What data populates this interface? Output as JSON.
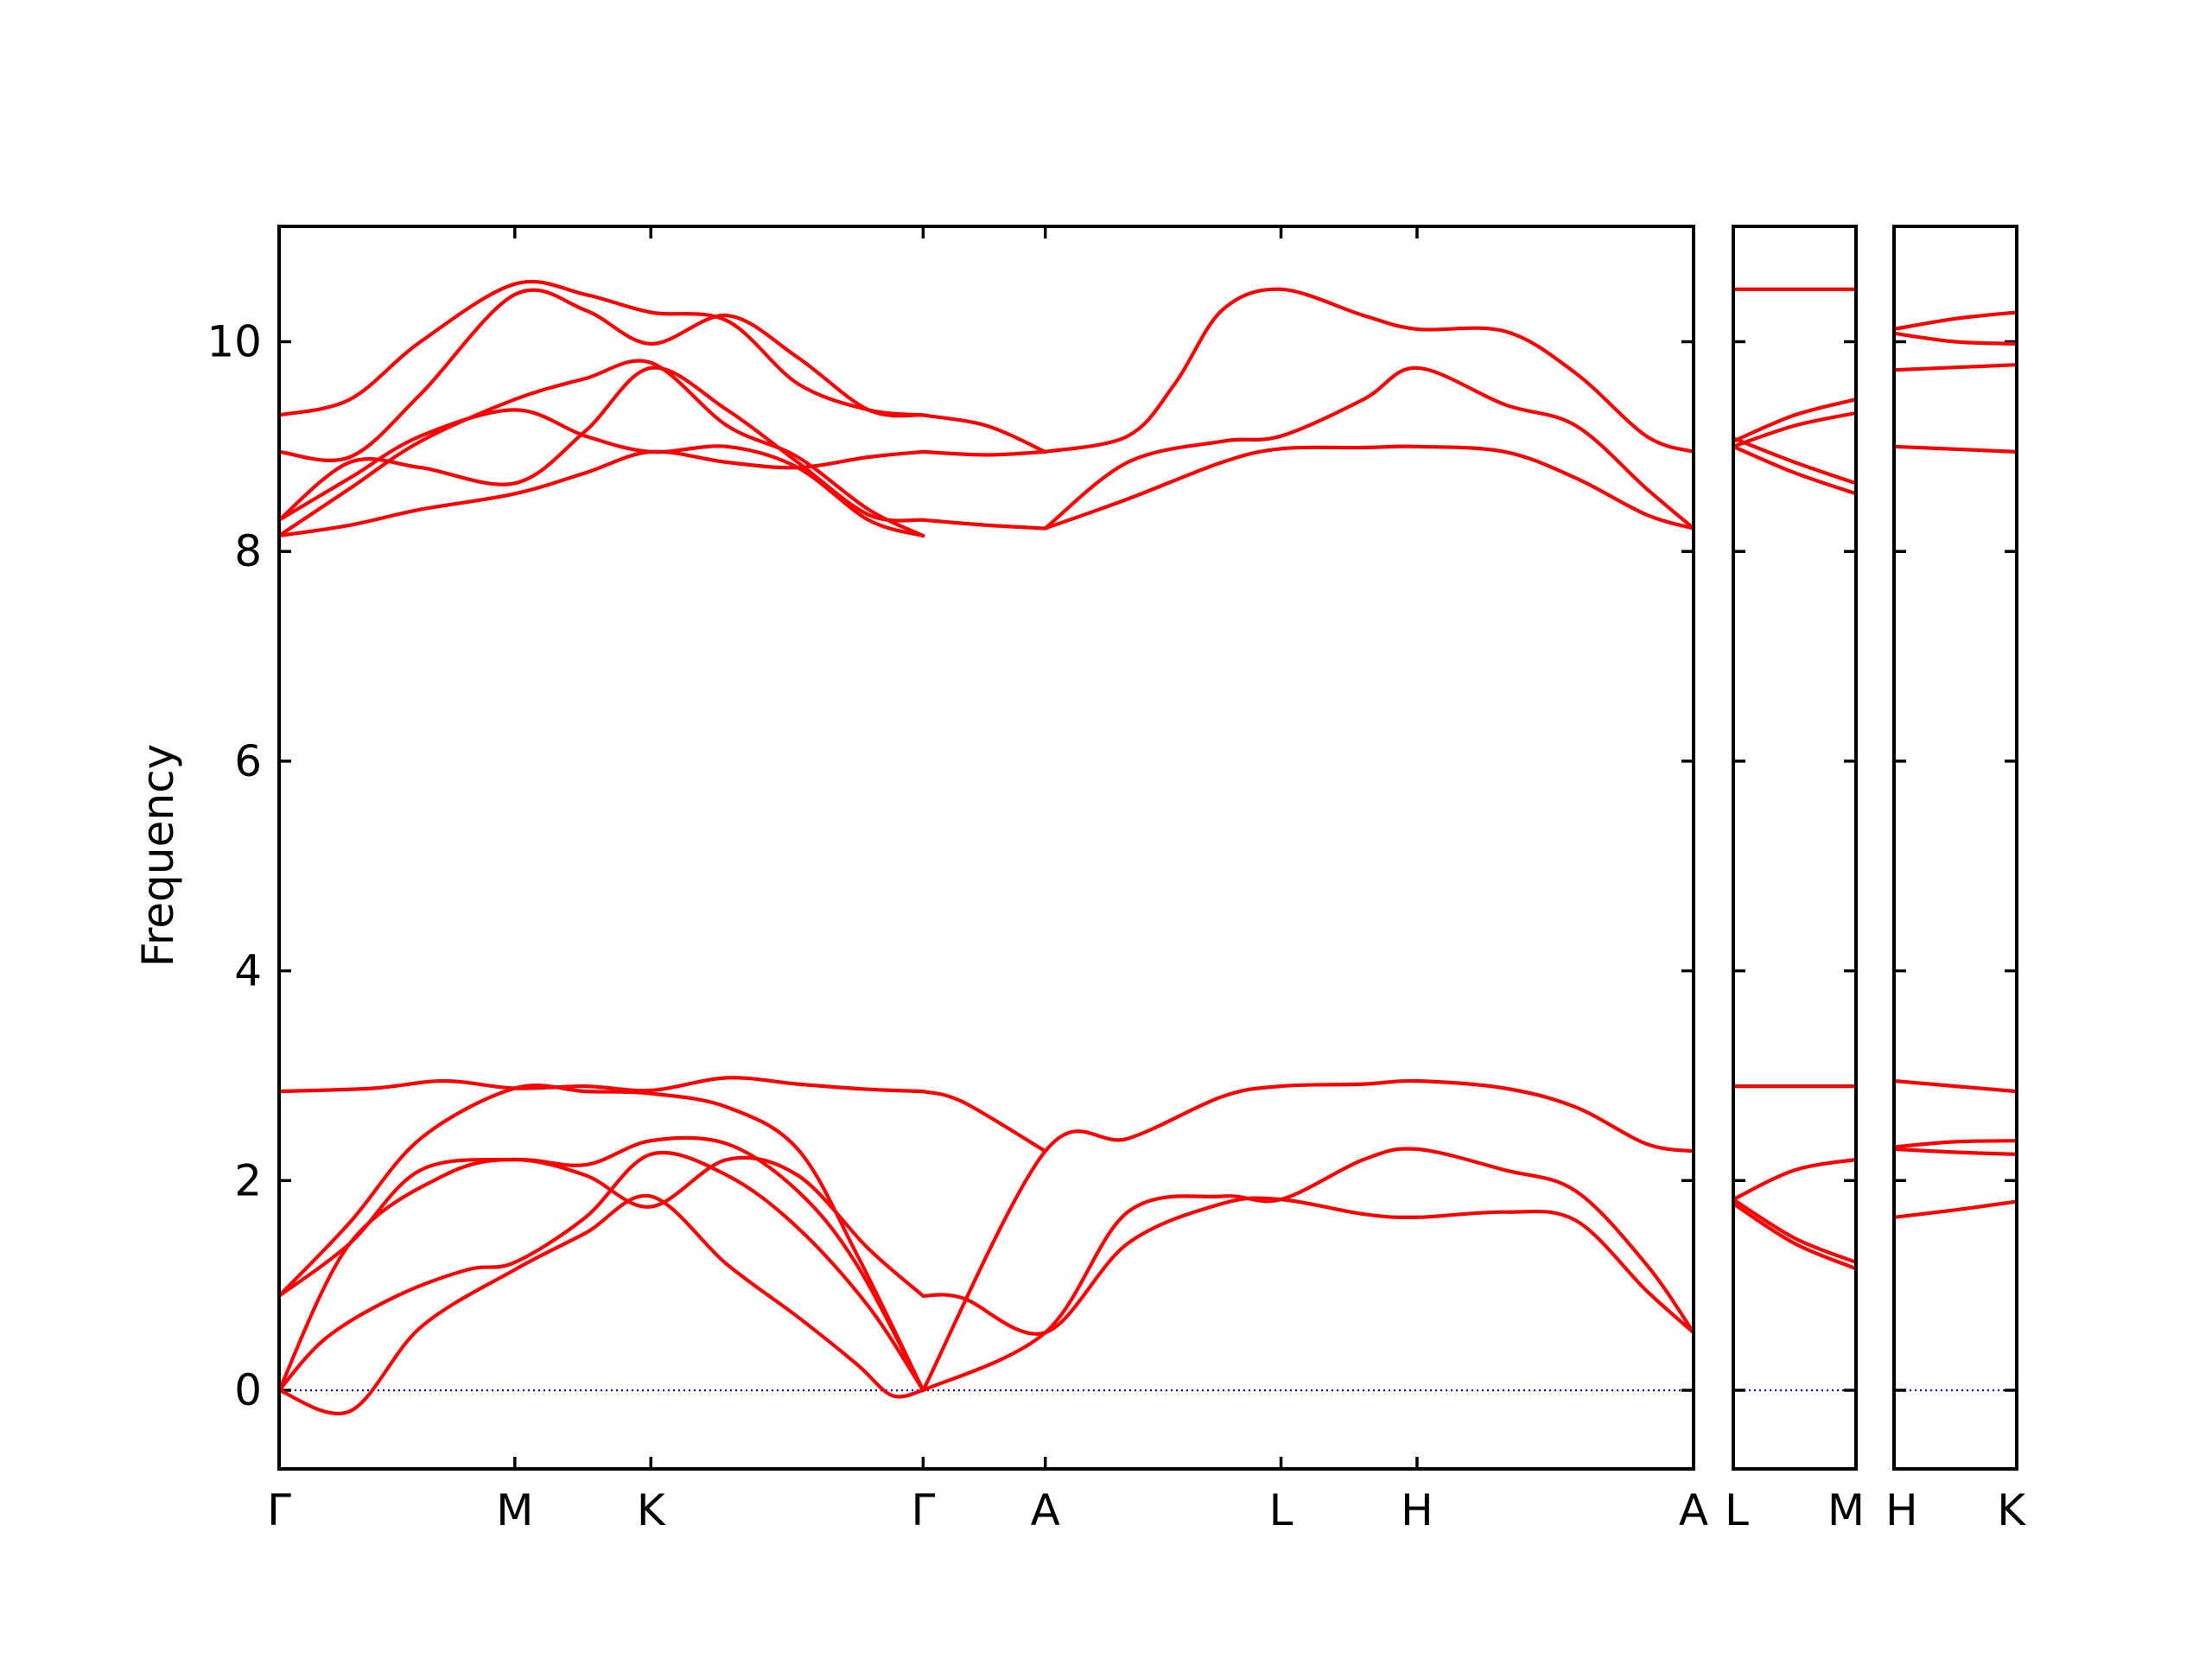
{
  "chart_data": {
    "type": "line",
    "title": "",
    "ylabel": "Frequency",
    "ylim": [
      -0.75,
      11.1
    ],
    "yticks": [
      0,
      2,
      4,
      6,
      8,
      10
    ],
    "ytick_labels": [
      "0",
      "2",
      "4",
      "6",
      "8",
      "10"
    ],
    "colors": {
      "band": "#ff0000",
      "zero_line": "#0000cc",
      "axes": "#000000"
    },
    "grid": false,
    "legend": "none",
    "panels": [
      {
        "name": "main",
        "x_labels": [
          "Γ",
          "M",
          "K",
          "Γ",
          "A",
          "L",
          "H",
          "A"
        ],
        "x_positions": [
          0,
          1,
          1.577,
          2.732,
          3.25,
          4.25,
          4.827,
          6.0
        ],
        "series": [
          {
            "x": [
              0,
              0.3,
              0.6,
              1.0,
              1.3,
              1.577,
              1.9,
              2.2,
              2.45,
              2.6,
              2.732
            ],
            "y": [
              0.0,
              -0.2,
              0.6,
              1.15,
              1.5,
              1.85,
              1.2,
              0.7,
              0.25,
              -0.05,
              0.0
            ]
          },
          {
            "x": [
              0,
              0.2,
              0.5,
              0.8,
              1.0,
              1.3,
              1.577,
              1.9,
              2.2,
              2.5,
              2.732
            ],
            "y": [
              0.0,
              0.5,
              0.9,
              1.15,
              1.22,
              1.65,
              2.25,
              2.05,
              1.55,
              0.8,
              0.0
            ]
          },
          {
            "x": [
              0,
              0.3,
              0.7,
              1.0,
              1.3,
              1.577,
              1.9,
              2.2,
              2.5,
              2.732
            ],
            "y": [
              0.0,
              1.4,
              2.05,
              2.2,
              2.05,
              1.75,
              2.2,
              2.05,
              1.35,
              0.9
            ]
          },
          {
            "x": [
              0,
              0.3,
              0.6,
              1.0,
              1.3,
              1.577,
              1.9,
              2.2,
              2.45,
              2.732
            ],
            "y": [
              0.9,
              1.4,
              2.1,
              2.2,
              2.15,
              2.38,
              2.35,
              1.9,
              1.2,
              0.0
            ]
          },
          {
            "x": [
              0,
              0.3,
              0.6,
              1.0,
              1.3,
              1.577,
              1.9,
              2.2,
              2.45,
              2.732
            ],
            "y": [
              0.9,
              1.6,
              2.4,
              2.88,
              2.85,
              2.83,
              2.7,
              2.3,
              1.3,
              0.0
            ]
          },
          {
            "x": [
              0,
              0.4,
              0.7,
              1.0,
              1.3,
              1.577,
              1.9,
              2.2,
              2.5,
              2.732
            ],
            "y": [
              2.85,
              2.88,
              2.95,
              2.88,
              2.9,
              2.86,
              2.98,
              2.92,
              2.87,
              2.85
            ]
          },
          {
            "x": [
              2.732,
              2.9,
              3.25,
              3.6,
              4.0,
              4.25,
              4.6,
              4.827,
              5.2,
              5.5,
              5.8,
              6.0
            ],
            "y": [
              0.9,
              0.88,
              0.55,
              1.4,
              1.78,
              1.82,
              1.68,
              1.65,
              1.7,
              1.62,
              0.95,
              0.55
            ]
          },
          {
            "x": [
              2.732,
              3.25,
              3.6,
              4.0,
              4.25,
              4.6,
              4.827,
              5.2,
              5.5,
              5.8,
              6.0
            ],
            "y": [
              0.0,
              0.55,
              1.7,
              1.85,
              1.82,
              2.2,
              2.3,
              2.1,
              1.9,
              1.2,
              0.55
            ]
          },
          {
            "x": [
              2.732,
              3.25,
              3.6,
              4.0,
              4.25,
              4.6,
              4.827,
              5.2,
              5.5,
              5.8,
              6.0
            ],
            "y": [
              0.0,
              2.28,
              2.4,
              2.8,
              2.9,
              2.92,
              2.95,
              2.88,
              2.7,
              2.35,
              2.28
            ]
          },
          {
            "x": [
              2.732,
              2.9,
              3.25
            ],
            "y": [
              2.85,
              2.75,
              2.28
            ]
          },
          {
            "x": [
              0,
              0.3,
              0.6,
              1.0,
              1.3,
              1.577,
              1.9,
              2.2,
              2.5,
              2.732
            ],
            "y": [
              8.15,
              8.25,
              8.4,
              8.55,
              8.75,
              8.95,
              8.85,
              8.8,
              8.9,
              8.95
            ]
          },
          {
            "x": [
              0,
              0.3,
              0.6,
              1.0,
              1.3,
              1.577,
              1.9,
              2.2,
              2.5,
              2.732
            ],
            "y": [
              8.15,
              8.6,
              9.05,
              9.45,
              9.65,
              9.8,
              9.2,
              8.9,
              8.4,
              8.15
            ]
          },
          {
            "x": [
              0,
              0.3,
              0.6,
              1.0,
              1.3,
              1.577,
              1.9,
              2.2,
              2.5,
              2.732
            ],
            "y": [
              8.3,
              8.7,
              9.1,
              9.35,
              9.1,
              8.95,
              9.0,
              8.8,
              8.3,
              8.15
            ]
          },
          {
            "x": [
              0,
              0.3,
              0.6,
              1.0,
              1.3,
              1.577,
              1.9,
              2.2,
              2.5,
              2.732
            ],
            "y": [
              8.3,
              8.85,
              8.8,
              8.65,
              9.15,
              9.75,
              9.35,
              8.85,
              8.35,
              8.3
            ]
          },
          {
            "x": [
              0,
              0.3,
              0.6,
              1.0,
              1.3,
              1.577,
              1.9,
              2.2,
              2.5,
              2.732
            ],
            "y": [
              8.95,
              8.9,
              9.5,
              10.45,
              10.3,
              9.98,
              10.25,
              9.85,
              9.35,
              9.3
            ]
          },
          {
            "x": [
              0,
              0.3,
              0.6,
              1.0,
              1.3,
              1.577,
              1.9,
              2.2,
              2.5,
              2.732
            ],
            "y": [
              9.3,
              9.45,
              10.0,
              10.55,
              10.45,
              10.28,
              10.2,
              9.6,
              9.35,
              9.3
            ]
          },
          {
            "x": [
              2.732,
              3.0,
              3.25
            ],
            "y": [
              8.3,
              8.25,
              8.22
            ]
          },
          {
            "x": [
              2.732,
              3.0,
              3.25
            ],
            "y": [
              8.95,
              8.92,
              8.95
            ]
          },
          {
            "x": [
              2.732,
              3.0,
              3.25
            ],
            "y": [
              9.3,
              9.2,
              8.95
            ]
          },
          {
            "x": [
              3.25,
              3.6,
              4.0,
              4.25,
              4.6,
              4.827,
              5.2,
              5.5,
              5.8,
              6.0
            ],
            "y": [
              8.22,
              8.5,
              8.85,
              8.98,
              8.99,
              9.0,
              8.95,
              8.7,
              8.35,
              8.22
            ]
          },
          {
            "x": [
              3.25,
              3.6,
              4.0,
              4.25,
              4.6,
              4.827,
              5.2,
              5.5,
              5.8,
              6.0
            ],
            "y": [
              8.22,
              8.85,
              9.05,
              9.1,
              9.45,
              9.75,
              9.4,
              9.2,
              8.6,
              8.22
            ]
          },
          {
            "x": [
              3.25,
              3.6,
              3.8,
              4.0,
              4.25,
              4.6,
              4.827,
              5.2,
              5.5,
              5.8,
              6.0
            ],
            "y": [
              8.95,
              9.1,
              9.6,
              10.3,
              10.5,
              10.25,
              10.12,
              10.1,
              9.7,
              9.1,
              8.95
            ]
          }
        ]
      },
      {
        "name": "L-M",
        "x_labels": [
          "L",
          "M"
        ],
        "x_positions": [
          0,
          1
        ],
        "series": [
          {
            "x": [
              0,
              1
            ],
            "y": [
              10.5,
              10.5
            ]
          },
          {
            "x": [
              0,
              0.5,
              1
            ],
            "y": [
              9.05,
              9.3,
              9.45
            ]
          },
          {
            "x": [
              0,
              0.5,
              1
            ],
            "y": [
              9.0,
              9.2,
              9.32
            ]
          },
          {
            "x": [
              0,
              0.5,
              1
            ],
            "y": [
              9.0,
              8.75,
              8.55
            ]
          },
          {
            "x": [
              0,
              0.5,
              1
            ],
            "y": [
              9.08,
              8.85,
              8.65
            ]
          },
          {
            "x": [
              0,
              1
            ],
            "y": [
              2.9,
              2.9
            ]
          },
          {
            "x": [
              0,
              0.5,
              1
            ],
            "y": [
              1.82,
              2.1,
              2.2
            ]
          },
          {
            "x": [
              0,
              0.5,
              1
            ],
            "y": [
              1.82,
              1.45,
              1.22
            ]
          },
          {
            "x": [
              0,
              0.5,
              1
            ],
            "y": [
              1.78,
              1.4,
              1.16
            ]
          }
        ]
      },
      {
        "name": "H-K",
        "x_labels": [
          "H",
          "K"
        ],
        "x_positions": [
          0,
          1
        ],
        "series": [
          {
            "x": [
              0,
              0.5,
              1
            ],
            "y": [
              10.12,
              10.22,
              10.28
            ]
          },
          {
            "x": [
              0,
              0.5,
              1
            ],
            "y": [
              10.08,
              10.0,
              9.98
            ]
          },
          {
            "x": [
              0,
              1
            ],
            "y": [
              9.73,
              9.78
            ]
          },
          {
            "x": [
              0,
              1
            ],
            "y": [
              9.0,
              8.95
            ]
          },
          {
            "x": [
              0,
              0.5,
              1
            ],
            "y": [
              2.95,
              2.9,
              2.85
            ]
          },
          {
            "x": [
              0,
              0.5,
              1
            ],
            "y": [
              2.32,
              2.37,
              2.38
            ]
          },
          {
            "x": [
              0,
              0.5,
              1
            ],
            "y": [
              2.3,
              2.27,
              2.25
            ]
          },
          {
            "x": [
              0,
              0.5,
              1
            ],
            "y": [
              1.65,
              1.72,
              1.8
            ]
          }
        ]
      }
    ]
  }
}
